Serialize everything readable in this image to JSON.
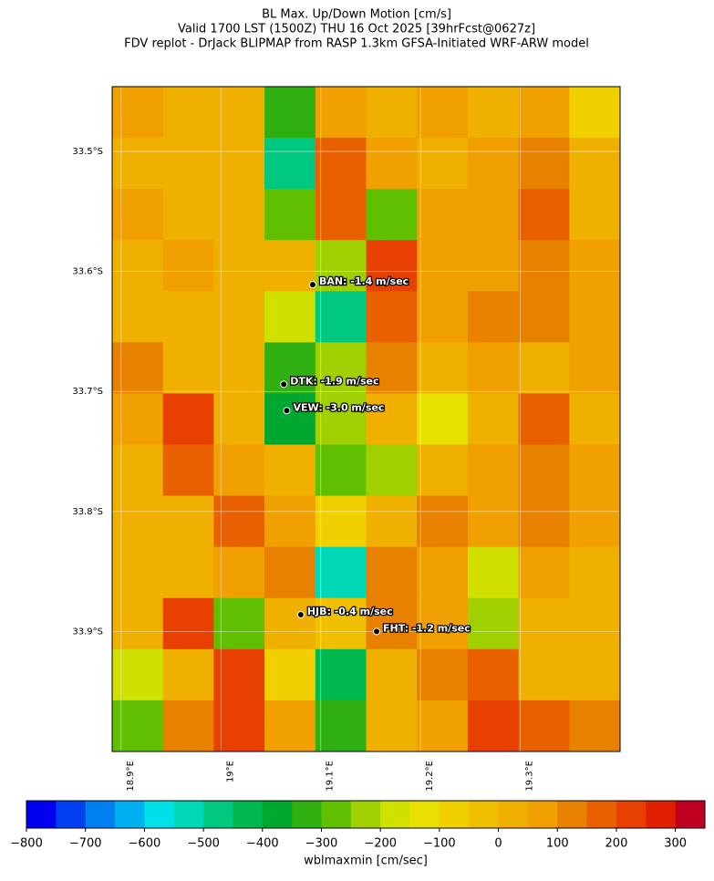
{
  "header": {
    "title_lines": [
      "BL Max. Up/Down Motion [cm/s]",
      "Valid 1700 LST (1500Z) THU 16 Oct 2025 [39hrFcst@0627z]",
      "FDV replot - DrJack BLIPMAP from RASP 1.3km GFSA-Initiated WRF-ARW model"
    ]
  },
  "map": {
    "xlim": [
      18.891,
      19.4
    ],
    "ylim": [
      -34.0,
      -33.446
    ],
    "xticks": [
      {
        "value": 18.9,
        "label": "18.9°E"
      },
      {
        "value": 19.0,
        "label": "19°E"
      },
      {
        "value": 19.1,
        "label": "19.1°E"
      },
      {
        "value": 19.2,
        "label": "19.2°E"
      },
      {
        "value": 19.3,
        "label": "19.3°E"
      }
    ],
    "yticks": [
      {
        "value": -33.5,
        "label": "33.5°S"
      },
      {
        "value": -33.6,
        "label": "33.6°S"
      },
      {
        "value": -33.7,
        "label": "33.7°S"
      },
      {
        "value": -33.8,
        "label": "33.8°S"
      },
      {
        "value": -33.9,
        "label": "33.9°S"
      }
    ],
    "grid": [
      [
        50,
        0,
        0,
        -350,
        50,
        0,
        50,
        0,
        50,
        -100
      ],
      [
        0,
        0,
        0,
        -500,
        150,
        50,
        0,
        50,
        100,
        0
      ],
      [
        50,
        0,
        0,
        -300,
        150,
        -300,
        50,
        50,
        150,
        0
      ],
      [
        0,
        50,
        0,
        0,
        -250,
        200,
        50,
        50,
        100,
        50
      ],
      [
        0,
        0,
        0,
        -200,
        -500,
        150,
        50,
        100,
        100,
        50
      ],
      [
        100,
        0,
        0,
        -350,
        -250,
        100,
        0,
        50,
        0,
        50
      ],
      [
        50,
        200,
        0,
        -400,
        -250,
        0,
        -150,
        0,
        150,
        0
      ],
      [
        0,
        150,
        50,
        0,
        -300,
        -250,
        0,
        50,
        100,
        50
      ],
      [
        0,
        0,
        150,
        50,
        -100,
        0,
        100,
        50,
        100,
        50
      ],
      [
        0,
        0,
        50,
        100,
        -550,
        100,
        50,
        -200,
        50,
        0
      ],
      [
        0,
        200,
        -300,
        0,
        -50,
        100,
        50,
        -250,
        0,
        0
      ],
      [
        -200,
        0,
        200,
        -100,
        -450,
        0,
        100,
        150,
        0,
        0
      ],
      [
        -300,
        100,
        200,
        50,
        -350,
        0,
        50,
        200,
        150,
        100
      ]
    ],
    "stations": [
      {
        "label": "BAN: -1.4 m/sec",
        "lon": 19.092,
        "lat": -33.611
      },
      {
        "label": "DTK: -1.9 m/sec",
        "lon": 19.063,
        "lat": -33.694
      },
      {
        "label": "VEW: -3.0 m/sec",
        "lon": 19.066,
        "lat": -33.716
      },
      {
        "label": "HJB: -0.4 m/sec",
        "lon": 19.08,
        "lat": -33.886
      },
      {
        "label": "FHT: -1.2 m/sec",
        "lon": 19.156,
        "lat": -33.9
      }
    ]
  },
  "colorbar": {
    "label": "wblmaxmin [cm/sec]",
    "clim": [
      -800,
      350
    ],
    "colors": [
      "#0000f0",
      "#0040f0",
      "#0080f0",
      "#00b0f0",
      "#00e0e8",
      "#00d8b8",
      "#00c880",
      "#00b850",
      "#00a830",
      "#30b010",
      "#60c000",
      "#a0d000",
      "#d0e000",
      "#e8e000",
      "#f0d000",
      "#f0c000",
      "#f0b000",
      "#f0a000",
      "#e88000",
      "#e86000",
      "#e84000",
      "#e02000",
      "#c00020"
    ],
    "ticks": [
      {
        "value": -800,
        "label": "−800"
      },
      {
        "value": -700,
        "label": "−700"
      },
      {
        "value": -600,
        "label": "−600"
      },
      {
        "value": -500,
        "label": "−500"
      },
      {
        "value": -400,
        "label": "−400"
      },
      {
        "value": -300,
        "label": "−300"
      },
      {
        "value": -200,
        "label": "−200"
      },
      {
        "value": -100,
        "label": "−100"
      },
      0,
      100,
      200,
      300
    ]
  }
}
